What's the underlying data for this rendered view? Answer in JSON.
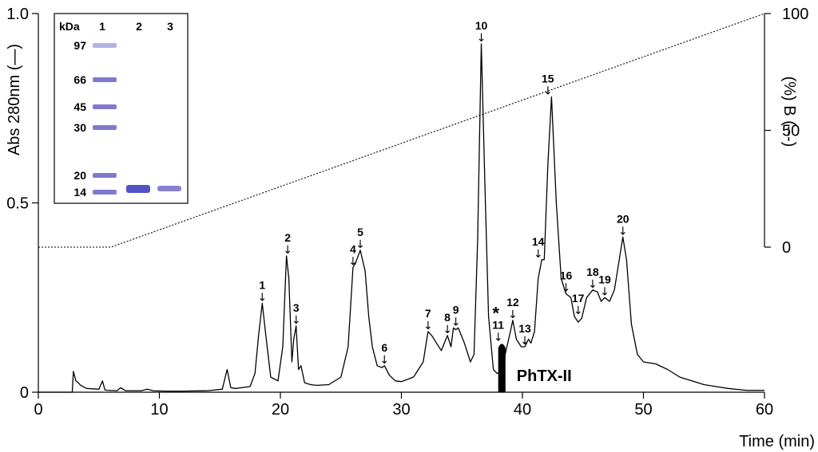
{
  "chart_data": {
    "type": "line",
    "xlabel": "Time (min)",
    "ylabel_left": "Abs 280nm (—)",
    "ylabel_right": "(%) B (---)",
    "xlim": [
      0,
      60
    ],
    "ylim_left": [
      0,
      1.0
    ],
    "ylim_right": [
      0,
      100
    ],
    "x_ticks": [
      0,
      10,
      20,
      30,
      40,
      50,
      60
    ],
    "y_left_ticks": [
      {
        "v": 0,
        "label": "0"
      },
      {
        "v": 0.5,
        "label": "0.5"
      },
      {
        "v": 1.0,
        "label": "1.0"
      }
    ],
    "y_right_ticks": [
      {
        "v": 0,
        "label": "0"
      },
      {
        "v": 50,
        "label": "50"
      },
      {
        "v": 100,
        "label": "100"
      }
    ],
    "series": [
      {
        "style": "solid",
        "x": [
          0,
          2.8,
          2.9,
          3.1,
          3.3,
          3.5,
          4.0,
          5.0,
          5.3,
          5.5,
          5.7,
          6.5,
          6.8,
          7.2,
          8.5,
          9.0,
          9.5,
          10.5,
          12,
          14,
          15.2,
          15.6,
          15.9,
          16.3,
          17.5,
          17.9,
          18.2,
          18.5,
          18.8,
          19.2,
          19.8,
          20.2,
          20.5,
          20.7,
          20.95,
          21.1,
          21.3,
          21.5,
          21.7,
          22,
          22.5,
          23,
          24,
          25,
          25.6,
          26.0,
          26.2,
          26.6,
          27.0,
          27.3,
          27.6,
          28.0,
          28.4,
          28.6,
          29.0,
          29.5,
          30,
          31,
          31.8,
          32.2,
          32.5,
          32.9,
          33.3,
          33.8,
          34.1,
          34.3,
          34.5,
          34.7,
          35.2,
          35.7,
          36.0,
          36.3,
          36.6,
          36.9,
          37.2,
          37.6,
          37.9,
          38.0,
          38.5,
          39.0,
          39.2,
          39.5,
          39.9,
          40.2,
          40.5,
          40.7,
          41.0,
          41.3,
          41.6,
          41.8,
          42.1,
          42.4,
          42.8,
          43.2,
          43.6,
          44.0,
          44.3,
          44.6,
          44.9,
          45.3,
          45.8,
          46.2,
          46.5,
          46.8,
          47.2,
          47.6,
          48.0,
          48.3,
          48.6,
          49.0,
          49.5,
          50,
          51,
          52,
          53,
          55,
          57,
          58.5,
          60
        ],
        "y": [
          0,
          0,
          0.055,
          0.03,
          0.025,
          0.018,
          0.01,
          0.008,
          0.03,
          0.006,
          0.005,
          0.004,
          0.012,
          0.004,
          0.004,
          0.008,
          0.004,
          0.003,
          0.003,
          0.004,
          0.008,
          0.06,
          0.012,
          0.01,
          0.015,
          0.05,
          0.15,
          0.235,
          0.15,
          0.04,
          0.03,
          0.12,
          0.36,
          0.3,
          0.08,
          0.14,
          0.175,
          0.06,
          0.07,
          0.025,
          0.02,
          0.018,
          0.02,
          0.04,
          0.12,
          0.33,
          0.34,
          0.375,
          0.32,
          0.2,
          0.12,
          0.07,
          0.065,
          0.07,
          0.045,
          0.03,
          0.028,
          0.04,
          0.08,
          0.16,
          0.15,
          0.13,
          0.11,
          0.15,
          0.12,
          0.17,
          0.165,
          0.17,
          0.13,
          0.08,
          0.1,
          0.4,
          0.92,
          0.55,
          0.2,
          0.06,
          0.05,
          0.05,
          0.09,
          0.16,
          0.19,
          0.14,
          0.12,
          0.12,
          0.14,
          0.13,
          0.16,
          0.3,
          0.35,
          0.35,
          0.6,
          0.78,
          0.5,
          0.3,
          0.26,
          0.25,
          0.2,
          0.185,
          0.195,
          0.25,
          0.27,
          0.265,
          0.24,
          0.25,
          0.24,
          0.27,
          0.35,
          0.41,
          0.35,
          0.18,
          0.1,
          0.08,
          0.075,
          0.06,
          0.04,
          0.02,
          0.01,
          0.005,
          0.005
        ]
      },
      {
        "style": "dotted",
        "axis": "right",
        "x": [
          0,
          6,
          60
        ],
        "y": [
          0,
          0,
          100
        ]
      }
    ],
    "peaks": [
      {
        "label": "1",
        "x": 18.5,
        "y": 0.235
      },
      {
        "label": "2",
        "x": 20.6,
        "y": 0.36
      },
      {
        "label": "3",
        "x": 21.3,
        "y": 0.175
      },
      {
        "label": "4",
        "x": 26.0,
        "y": 0.33
      },
      {
        "label": "5",
        "x": 26.6,
        "y": 0.375
      },
      {
        "label": "6",
        "x": 28.6,
        "y": 0.07
      },
      {
        "label": "7",
        "x": 32.2,
        "y": 0.16
      },
      {
        "label": "8",
        "x": 33.8,
        "y": 0.15
      },
      {
        "label": "9",
        "x": 34.5,
        "y": 0.17
      },
      {
        "label": "10",
        "x": 36.6,
        "y": 0.92
      },
      {
        "label": "11",
        "x": 38.0,
        "y": 0.13
      },
      {
        "label": "12",
        "x": 39.2,
        "y": 0.19
      },
      {
        "label": "13",
        "x": 40.2,
        "y": 0.12
      },
      {
        "label": "14",
        "x": 41.3,
        "y": 0.35
      },
      {
        "label": "15",
        "x": 42.1,
        "y": 0.78
      },
      {
        "label": "16",
        "x": 43.6,
        "y": 0.26
      },
      {
        "label": "17",
        "x": 44.6,
        "y": 0.2
      },
      {
        "label": "18",
        "x": 45.8,
        "y": 0.27
      },
      {
        "label": "19",
        "x": 46.8,
        "y": 0.25
      },
      {
        "label": "20",
        "x": 48.3,
        "y": 0.41
      }
    ],
    "highlight": {
      "label": "PhTX-II",
      "star": "*",
      "x_start": 38.0,
      "x_end": 38.6,
      "y": 0.13
    }
  },
  "gel": {
    "header_kda": "kDa",
    "lanes": [
      "1",
      "2",
      "3"
    ],
    "markers": [
      "97",
      "66",
      "45",
      "30",
      "20",
      "14"
    ]
  }
}
